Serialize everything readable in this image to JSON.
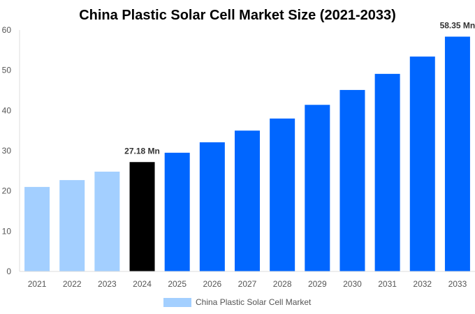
{
  "chart_data": {
    "type": "bar",
    "title": "China Plastic Solar Cell Market Size (2021-2033)",
    "xlabel": "",
    "ylabel": "",
    "ylim": [
      0,
      60
    ],
    "yticks": [
      0,
      10,
      20,
      30,
      40,
      50,
      60
    ],
    "grid": false,
    "legend_position": "bottom",
    "categories": [
      "2021",
      "2022",
      "2023",
      "2024",
      "2025",
      "2026",
      "2027",
      "2028",
      "2029",
      "2030",
      "2031",
      "2032",
      "2033"
    ],
    "series": [
      {
        "name": "China Plastic Solar Cell Market",
        "values": [
          21.0,
          22.7,
          24.8,
          27.18,
          29.5,
          32.1,
          35.0,
          38.0,
          41.4,
          45.1,
          49.1,
          53.4,
          58.35
        ]
      }
    ],
    "bar_colors": {
      "historical": "#a3cfff",
      "base_year": "#000000",
      "forecast": "#0066ff"
    },
    "data_labels": [
      {
        "category": "2024",
        "text": "27.18 Mn"
      },
      {
        "category": "2033",
        "text": "58.35 Mn"
      }
    ]
  }
}
